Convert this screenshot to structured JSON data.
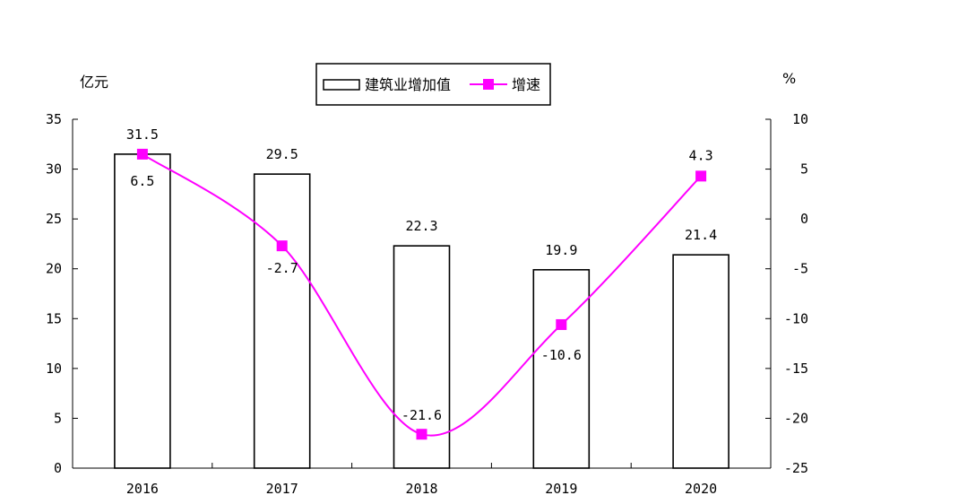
{
  "chart_data": {
    "type": "bar",
    "categories": [
      "2016",
      "2017",
      "2018",
      "2019",
      "2020"
    ],
    "series": [
      {
        "name": "建筑业增加值",
        "type": "bar",
        "axis": "left",
        "values": [
          31.5,
          29.5,
          22.3,
          19.9,
          21.4
        ],
        "labels": [
          "31.5",
          "29.5",
          "22.3",
          "19.9",
          "21.4"
        ],
        "color": "#ffffff",
        "stroke": "#000000"
      },
      {
        "name": "增速",
        "type": "line",
        "axis": "right",
        "values": [
          6.5,
          -2.7,
          -21.6,
          -10.6,
          4.3
        ],
        "labels": [
          "6.5",
          "-2.7",
          "-21.6",
          "-10.6",
          "4.3"
        ],
        "color": "#ff00ff",
        "smooth": true
      }
    ],
    "y_left": {
      "unit": "亿元",
      "ylim": [
        0,
        35
      ],
      "ticks": [
        0,
        5,
        10,
        15,
        20,
        25,
        30,
        35
      ]
    },
    "y_right": {
      "unit": "%",
      "ylim": [
        -25,
        10
      ],
      "ticks": [
        -25,
        -20,
        -15,
        -10,
        -5,
        0,
        5,
        10
      ]
    },
    "grid": false,
    "legend": "top-center"
  }
}
